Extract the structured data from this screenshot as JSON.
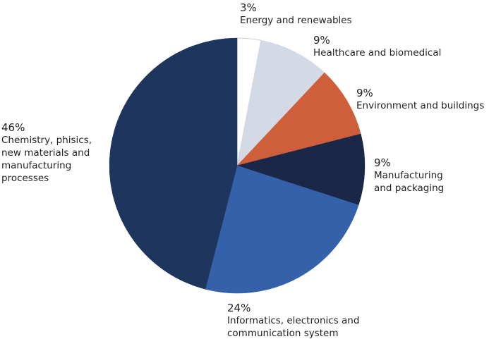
{
  "chart_data": {
    "type": "pie",
    "categories": [
      "Energy and renewables",
      "Healthcare and biomedical",
      "Environment and buildings",
      "Manufacturing and packaging",
      "Informatics, electronics and communication system",
      "Chemistry, phisics, new materials and manufacturing processes"
    ],
    "values": [
      3,
      9,
      9,
      9,
      24,
      46
    ],
    "value_labels": [
      "3%",
      "9%",
      "9%",
      "9%",
      "24%",
      "46%"
    ],
    "colors": [
      "#ffffff",
      "#d3d9e5",
      "#cf5f3a",
      "#1b2747",
      "#3561aa",
      "#1e355e"
    ]
  }
}
